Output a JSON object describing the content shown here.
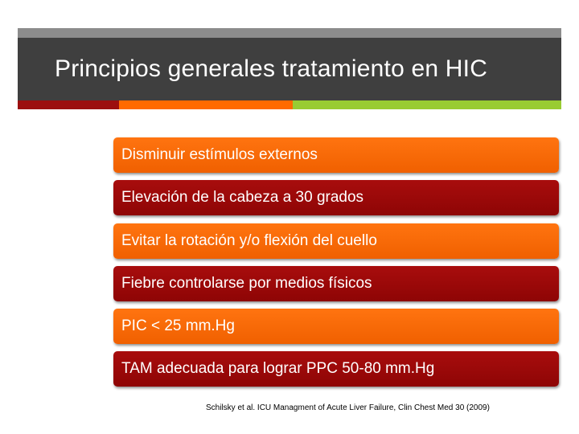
{
  "slide": {
    "title": "Principios generales tratamiento en HIC",
    "items": [
      "Disminuir estímulos externos",
      "Elevación de la cabeza a 30 grados",
      "Evitar la rotación y/o flexión del cuello",
      "Fiebre controlarse por medios físicos",
      "PIC < 25 mm.Hg",
      "TAM adecuada para lograr PPC 50-80 mm.Hg"
    ],
    "citation": "Schilsky et al. ICU Managment of Acute Liver Failure, Clin Chest Med 30 (2009)"
  },
  "colors": {
    "title_bar": "#3f3f3f",
    "item_orange": "#ff6a00",
    "item_red": "#9c0f0f",
    "accent_red": "#9c0f0f",
    "accent_orange": "#ff6a00",
    "accent_green": "#99cc33"
  }
}
